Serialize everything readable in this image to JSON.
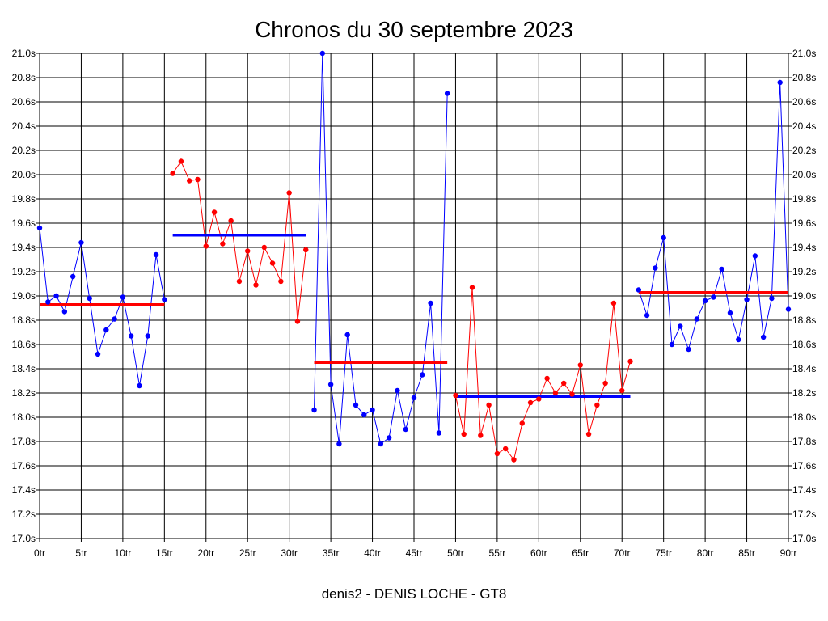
{
  "chart_data": {
    "type": "line",
    "title": "Chronos du 30 septembre 2023",
    "footer": "denis2 - DENIS LOCHE - GT8",
    "xlabel": "",
    "ylabel": "",
    "xlim": [
      0,
      90
    ],
    "ylim": [
      17.0,
      21.0
    ],
    "grid": true,
    "x_ticks": [
      0,
      5,
      10,
      15,
      20,
      25,
      30,
      35,
      40,
      45,
      50,
      55,
      60,
      65,
      70,
      75,
      80,
      85,
      90
    ],
    "x_tick_labels": [
      "0tr",
      "5tr",
      "10tr",
      "15tr",
      "20tr",
      "25tr",
      "30tr",
      "35tr",
      "40tr",
      "45tr",
      "50tr",
      "55tr",
      "60tr",
      "65tr",
      "70tr",
      "75tr",
      "80tr",
      "85tr",
      "90tr"
    ],
    "y_ticks": [
      17.0,
      17.2,
      17.4,
      17.6,
      17.8,
      18.0,
      18.2,
      18.4,
      18.6,
      18.8,
      19.0,
      19.2,
      19.4,
      19.6,
      19.8,
      20.0,
      20.2,
      20.4,
      20.6,
      20.8,
      21.0
    ],
    "y_tick_labels": [
      "17.0s",
      "17.2s",
      "17.4s",
      "17.6s",
      "17.8s",
      "18.0s",
      "18.2s",
      "18.4s",
      "18.6s",
      "18.8s",
      "19.0s",
      "19.2s",
      "19.4s",
      "19.6s",
      "19.8s",
      "20.0s",
      "20.2s",
      "20.4s",
      "20.6s",
      "20.8s",
      "21.0s"
    ],
    "series": [
      {
        "color": "#0000ff",
        "x": [
          0,
          1,
          2,
          3,
          4,
          5,
          6,
          7,
          8,
          9,
          10,
          11,
          12,
          13,
          14,
          15
        ],
        "y": [
          19.56,
          18.95,
          19.0,
          18.87,
          19.16,
          19.44,
          18.98,
          18.52,
          18.72,
          18.81,
          18.99,
          18.67,
          18.26,
          18.67,
          19.34,
          18.97
        ],
        "average": 18.93
      },
      {
        "color": "#ff0000",
        "x": [
          16,
          17,
          18,
          19,
          20,
          21,
          22,
          23,
          24,
          25,
          26,
          27,
          28,
          29,
          30,
          31,
          32
        ],
        "y": [
          20.01,
          20.11,
          19.95,
          19.96,
          19.41,
          19.69,
          19.43,
          19.62,
          19.12,
          19.37,
          19.09,
          19.4,
          19.27,
          19.12,
          19.85,
          18.79,
          19.38
        ],
        "average": 19.5
      },
      {
        "color": "#0000ff",
        "x": [
          33,
          34,
          35,
          36,
          37,
          38,
          39,
          40,
          41,
          42,
          43,
          44,
          45,
          46,
          47,
          48,
          49
        ],
        "y": [
          18.06,
          21.0,
          18.27,
          17.78,
          18.68,
          18.1,
          18.02,
          18.06,
          17.78,
          17.83,
          18.22,
          17.9,
          18.16,
          18.35,
          18.94,
          17.87,
          20.67
        ],
        "average": 18.45
      },
      {
        "color": "#ff0000",
        "x": [
          50,
          51,
          52,
          53,
          54,
          55,
          56,
          57,
          58,
          59,
          60,
          61,
          62,
          63,
          64,
          65,
          66,
          67,
          68,
          69,
          70,
          71
        ],
        "y": [
          18.18,
          17.86,
          19.07,
          17.85,
          18.1,
          17.7,
          17.74,
          17.65,
          17.95,
          18.12,
          18.15,
          18.32,
          18.2,
          18.28,
          18.19,
          18.43,
          17.86,
          18.1,
          18.28,
          18.94,
          18.22,
          18.46
        ],
        "average": 18.17
      },
      {
        "color": "#0000ff",
        "x": [
          72,
          73,
          74,
          75,
          76,
          77,
          78,
          79,
          80,
          81,
          82,
          83,
          84,
          85,
          86,
          87,
          88,
          89,
          90
        ],
        "y": [
          19.05,
          18.84,
          19.23,
          19.48,
          18.6,
          18.75,
          18.56,
          18.81,
          18.96,
          18.99,
          19.22,
          18.86,
          18.64,
          18.97,
          19.33,
          18.66,
          18.98,
          20.76,
          18.89
        ],
        "average": 19.03
      }
    ],
    "average_lines": [
      {
        "x": [
          0,
          15
        ],
        "y": 18.93,
        "color": "#ff0000"
      },
      {
        "x": [
          16,
          32
        ],
        "y": 19.5,
        "color": "#0000ff"
      },
      {
        "x": [
          33,
          49
        ],
        "y": 18.45,
        "color": "#ff0000"
      },
      {
        "x": [
          50,
          71
        ],
        "y": 18.17,
        "color": "#0000ff"
      },
      {
        "x": [
          72,
          90
        ],
        "y": 19.03,
        "color": "#ff0000"
      }
    ]
  }
}
